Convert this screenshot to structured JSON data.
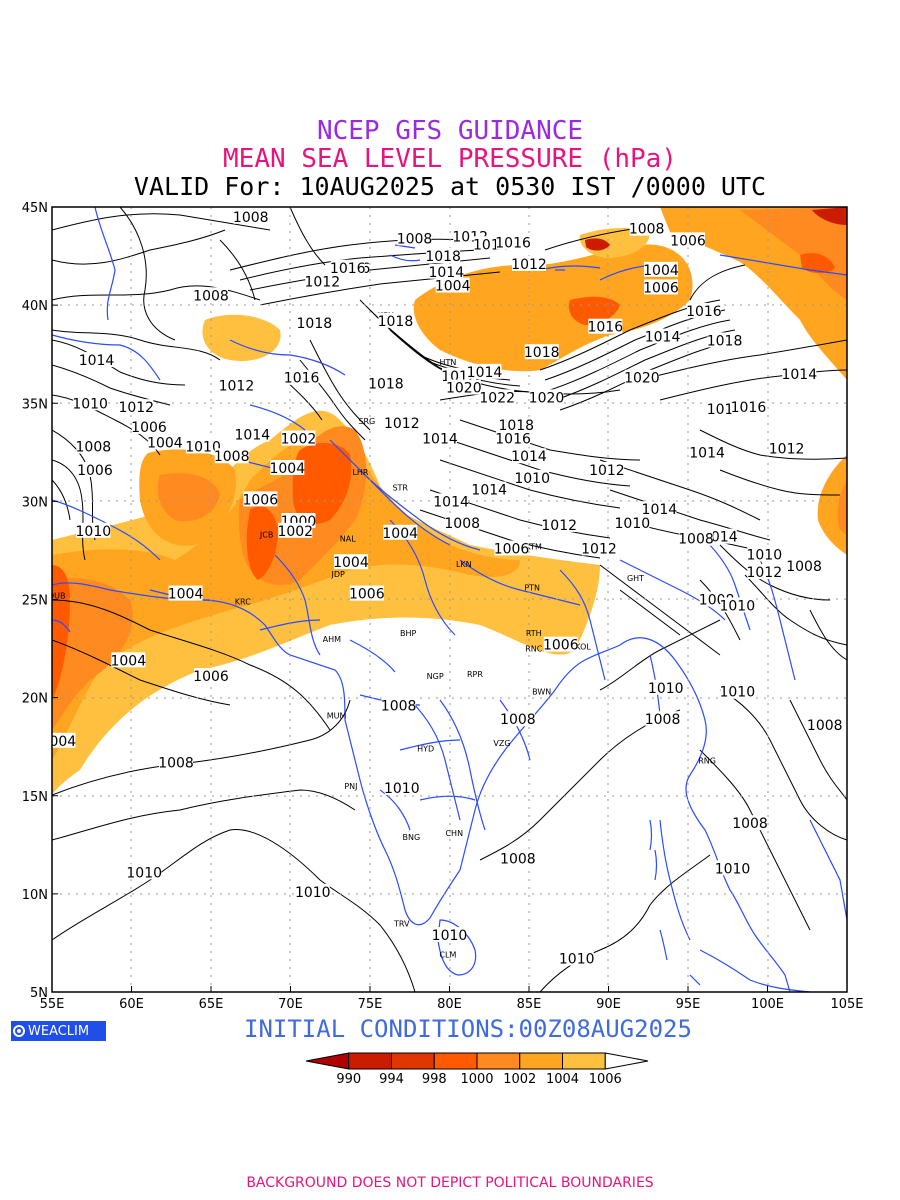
{
  "titles": {
    "line1": "NCEP GFS GUIDANCE",
    "line2": "MEAN SEA LEVEL PRESSURE (hPa)",
    "line3": "VALID For: 10AUG2025 at 0530 IST /0000 UTC"
  },
  "colors": {
    "title1": "#9a2be2",
    "title2": "#e8147e",
    "coast": "#2b4bff",
    "initial": "#3f6ae0",
    "note": "#e8147e"
  },
  "axes": {
    "lon_ticks": [
      "55E",
      "60E",
      "65E",
      "70E",
      "75E",
      "80E",
      "85E",
      "90E",
      "95E",
      "100E",
      "105E"
    ],
    "lat_ticks": [
      "45N",
      "40N",
      "35N",
      "30N",
      "25N",
      "20N",
      "15N",
      "10N",
      "5N"
    ]
  },
  "contour_labels": [
    {
      "text": "1008",
      "lon": 67.5,
      "lat": 44.5
    },
    {
      "text": "1008",
      "lon": 65.0,
      "lat": 40.5
    },
    {
      "text": "1012",
      "lon": 72.0,
      "lat": 41.2
    },
    {
      "text": "1016",
      "lon": 73.9,
      "lat": 41.9
    },
    {
      "text": "1018",
      "lon": 76.6,
      "lat": 39.2
    },
    {
      "text": "1008",
      "lon": 77.8,
      "lat": 43.4
    },
    {
      "text": "1012",
      "lon": 81.3,
      "lat": 43.5
    },
    {
      "text": "1014",
      "lon": 82.6,
      "lat": 43.1
    },
    {
      "text": "1016",
      "lon": 84.0,
      "lat": 43.2
    },
    {
      "text": "1012",
      "lon": 85.0,
      "lat": 42.1
    },
    {
      "text": "1018",
      "lon": 79.6,
      "lat": 42.5
    },
    {
      "text": "1014",
      "lon": 79.8,
      "lat": 41.7
    },
    {
      "text": "1004",
      "lon": 80.2,
      "lat": 41.0
    },
    {
      "text": "1008",
      "lon": 92.4,
      "lat": 43.9
    },
    {
      "text": "1006",
      "lon": 95.0,
      "lat": 43.3
    },
    {
      "text": "1004",
      "lon": 93.3,
      "lat": 41.8
    },
    {
      "text": "1006",
      "lon": 93.3,
      "lat": 40.9
    },
    {
      "text": "1016",
      "lon": 96.0,
      "lat": 39.7
    },
    {
      "text": "1016",
      "lon": 89.8,
      "lat": 38.9
    },
    {
      "text": "1014",
      "lon": 93.4,
      "lat": 38.4
    },
    {
      "text": "1018",
      "lon": 97.3,
      "lat": 38.2
    },
    {
      "text": "1018",
      "lon": 85.8,
      "lat": 37.6
    },
    {
      "text": "1014",
      "lon": 57.8,
      "lat": 37.2
    },
    {
      "text": "1010",
      "lon": 57.4,
      "lat": 35.0
    },
    {
      "text": "1012",
      "lon": 60.3,
      "lat": 34.8
    },
    {
      "text": "1012",
      "lon": 66.6,
      "lat": 35.9
    },
    {
      "text": "1006",
      "lon": 61.1,
      "lat": 33.8
    },
    {
      "text": "1004",
      "lon": 62.1,
      "lat": 33.0
    },
    {
      "text": "1010",
      "lon": 64.5,
      "lat": 32.8
    },
    {
      "text": "1008",
      "lon": 57.6,
      "lat": 32.8
    },
    {
      "text": "1008",
      "lon": 66.3,
      "lat": 32.3
    },
    {
      "text": "1014",
      "lon": 67.6,
      "lat": 33.4
    },
    {
      "text": "1002",
      "lon": 70.5,
      "lat": 33.2
    },
    {
      "text": "1004",
      "lon": 69.8,
      "lat": 31.7
    },
    {
      "text": "1006",
      "lon": 57.7,
      "lat": 31.6
    },
    {
      "text": "1006",
      "lon": 68.1,
      "lat": 30.1
    },
    {
      "text": "1010",
      "lon": 57.6,
      "lat": 28.5
    },
    {
      "text": "1000",
      "lon": 70.5,
      "lat": 29.0
    },
    {
      "text": "1002",
      "lon": 70.3,
      "lat": 28.5
    },
    {
      "text": "1004",
      "lon": 73.8,
      "lat": 26.9
    },
    {
      "text": "1004",
      "lon": 63.4,
      "lat": 25.3
    },
    {
      "text": "1006",
      "lon": 74.8,
      "lat": 25.3
    },
    {
      "text": "1004",
      "lon": 59.8,
      "lat": 21.9
    },
    {
      "text": "1006",
      "lon": 65.0,
      "lat": 21.1
    },
    {
      "text": "1004",
      "lon": 55.4,
      "lat": 17.8
    },
    {
      "text": "1018",
      "lon": 71.5,
      "lat": 39.1
    },
    {
      "text": "1016",
      "lon": 70.7,
      "lat": 36.3
    },
    {
      "text": "1016",
      "lon": 73.6,
      "lat": 41.9
    },
    {
      "text": "1018",
      "lon": 76.0,
      "lat": 36.0
    },
    {
      "text": "1012",
      "lon": 77.0,
      "lat": 34.0
    },
    {
      "text": "1014",
      "lon": 79.4,
      "lat": 33.2
    },
    {
      "text": "1012",
      "lon": 80.6,
      "lat": 36.4
    },
    {
      "text": "1014",
      "lon": 82.2,
      "lat": 36.6
    },
    {
      "text": "1020",
      "lon": 80.9,
      "lat": 35.8
    },
    {
      "text": "1022",
      "lon": 83.0,
      "lat": 35.3
    },
    {
      "text": "1020",
      "lon": 86.1,
      "lat": 35.3
    },
    {
      "text": "1020",
      "lon": 92.1,
      "lat": 36.3
    },
    {
      "text": "1018",
      "lon": 84.2,
      "lat": 33.9
    },
    {
      "text": "1016",
      "lon": 84.0,
      "lat": 33.2
    },
    {
      "text": "1014",
      "lon": 85.0,
      "lat": 32.3
    },
    {
      "text": "1010",
      "lon": 85.2,
      "lat": 31.2
    },
    {
      "text": "1012",
      "lon": 89.9,
      "lat": 31.6
    },
    {
      "text": "1014",
      "lon": 82.5,
      "lat": 30.6
    },
    {
      "text": "1014",
      "lon": 80.1,
      "lat": 30.0
    },
    {
      "text": "1014",
      "lon": 93.2,
      "lat": 29.6
    },
    {
      "text": "1008",
      "lon": 80.8,
      "lat": 28.9
    },
    {
      "text": "1004",
      "lon": 76.9,
      "lat": 28.4
    },
    {
      "text": "1012",
      "lon": 86.9,
      "lat": 28.8
    },
    {
      "text": "1010",
      "lon": 91.5,
      "lat": 28.9
    },
    {
      "text": "1006",
      "lon": 83.9,
      "lat": 27.6
    },
    {
      "text": "1012",
      "lon": 89.4,
      "lat": 27.6
    },
    {
      "text": "1014",
      "lon": 97.0,
      "lat": 28.2
    },
    {
      "text": "1008",
      "lon": 95.5,
      "lat": 28.1
    },
    {
      "text": "1010",
      "lon": 99.8,
      "lat": 27.3
    },
    {
      "text": "1008",
      "lon": 102.3,
      "lat": 26.7
    },
    {
      "text": "1012",
      "lon": 99.8,
      "lat": 26.4
    },
    {
      "text": "1014",
      "lon": 96.2,
      "lat": 32.5
    },
    {
      "text": "1018",
      "lon": 97.3,
      "lat": 34.7
    },
    {
      "text": "1016",
      "lon": 98.8,
      "lat": 34.8
    },
    {
      "text": "1012",
      "lon": 101.2,
      "lat": 32.7
    },
    {
      "text": "1014",
      "lon": 102.0,
      "lat": 36.5
    },
    {
      "text": "1008",
      "lon": 96.8,
      "lat": 25.0
    },
    {
      "text": "1010",
      "lon": 98.1,
      "lat": 24.7
    },
    {
      "text": "1006",
      "lon": 87.0,
      "lat": 22.7
    },
    {
      "text": "1008",
      "lon": 93.4,
      "lat": 18.9
    },
    {
      "text": "1010",
      "lon": 93.6,
      "lat": 20.5
    },
    {
      "text": "1010",
      "lon": 98.1,
      "lat": 20.3
    },
    {
      "text": "1008",
      "lon": 103.6,
      "lat": 18.6
    },
    {
      "text": "1008",
      "lon": 76.8,
      "lat": 19.6
    },
    {
      "text": "1008",
      "lon": 84.3,
      "lat": 18.9
    },
    {
      "text": "1008",
      "lon": 62.8,
      "lat": 16.7
    },
    {
      "text": "1010",
      "lon": 77.0,
      "lat": 15.4
    },
    {
      "text": "1008",
      "lon": 98.9,
      "lat": 13.6
    },
    {
      "text": "1008",
      "lon": 84.3,
      "lat": 11.8
    },
    {
      "text": "1010",
      "lon": 97.8,
      "lat": 11.3
    },
    {
      "text": "1010",
      "lon": 60.8,
      "lat": 11.1
    },
    {
      "text": "1010",
      "lon": 71.4,
      "lat": 10.1
    },
    {
      "text": "1010",
      "lon": 80.0,
      "lat": 7.9
    },
    {
      "text": "1010",
      "lon": 88.0,
      "lat": 6.7
    }
  ],
  "cities": [
    {
      "code": "KSH",
      "lon": 76.0,
      "lat": 39.5
    },
    {
      "code": "HTN",
      "lon": 79.9,
      "lat": 37.1
    },
    {
      "code": "SRG",
      "lon": 74.8,
      "lat": 34.1
    },
    {
      "code": "LHR",
      "lon": 74.4,
      "lat": 31.5
    },
    {
      "code": "STR",
      "lon": 76.9,
      "lat": 30.7
    },
    {
      "code": "JCB",
      "lon": 68.5,
      "lat": 28.3
    },
    {
      "code": "NAL",
      "lon": 73.6,
      "lat": 28.1
    },
    {
      "code": "JDP",
      "lon": 73.0,
      "lat": 26.3
    },
    {
      "code": "LKN",
      "lon": 80.9,
      "lat": 26.8
    },
    {
      "code": "PTN",
      "lon": 85.2,
      "lat": 25.6
    },
    {
      "code": "KTM",
      "lon": 85.3,
      "lat": 27.7
    },
    {
      "code": "GHT",
      "lon": 91.7,
      "lat": 26.1
    },
    {
      "code": "DUB",
      "lon": 55.3,
      "lat": 25.2
    },
    {
      "code": "KRC",
      "lon": 67.0,
      "lat": 24.9
    },
    {
      "code": "AHM",
      "lon": 72.6,
      "lat": 23.0
    },
    {
      "code": "BHP",
      "lon": 77.4,
      "lat": 23.3
    },
    {
      "code": "RTH",
      "lon": 85.3,
      "lat": 23.3
    },
    {
      "code": "RNC",
      "lon": 85.3,
      "lat": 22.5
    },
    {
      "code": "KOL",
      "lon": 88.4,
      "lat": 22.6
    },
    {
      "code": "NGP",
      "lon": 79.1,
      "lat": 21.1
    },
    {
      "code": "RPR",
      "lon": 81.6,
      "lat": 21.2
    },
    {
      "code": "BWN",
      "lon": 85.8,
      "lat": 20.3
    },
    {
      "code": "MUM",
      "lon": 72.9,
      "lat": 19.1
    },
    {
      "code": "HYD",
      "lon": 78.5,
      "lat": 17.4
    },
    {
      "code": "VZG",
      "lon": 83.3,
      "lat": 17.7
    },
    {
      "code": "RNG",
      "lon": 96.2,
      "lat": 16.8
    },
    {
      "code": "PNJ",
      "lon": 73.8,
      "lat": 15.5
    },
    {
      "code": "CHN",
      "lon": 80.3,
      "lat": 13.1
    },
    {
      "code": "BNG",
      "lon": 77.6,
      "lat": 12.9
    },
    {
      "code": "TRV",
      "lon": 77.0,
      "lat": 8.5
    },
    {
      "code": "CLM",
      "lon": 79.9,
      "lat": 6.9
    }
  ],
  "colorbar": {
    "colors": [
      "#b00000",
      "#cc1c00",
      "#e03600",
      "#ff5a00",
      "#ff8a1f",
      "#ffa51f",
      "#ffc040",
      "#ffffff"
    ],
    "labels": [
      "990",
      "994",
      "998",
      "1000",
      "1002",
      "1004",
      "1006"
    ]
  },
  "logo_text": "WEACLIM",
  "initial_conditions": "INITIAL CONDITIONS:00Z08AUG2025",
  "footer_note": "BACKGROUND DOES NOT DEPICT POLITICAL BOUNDARIES"
}
